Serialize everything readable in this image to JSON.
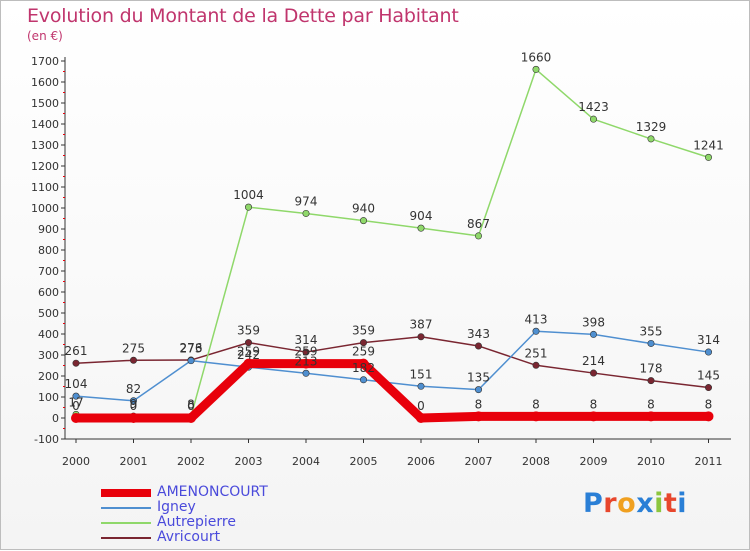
{
  "chart_data": {
    "type": "line",
    "title": "Evolution du Montant de la Dette par Habitant",
    "subtitle": "(en €)",
    "categories": [
      "2000",
      "2001",
      "2002",
      "2003",
      "2004",
      "2005",
      "2006",
      "2007",
      "2008",
      "2009",
      "2010",
      "2011"
    ],
    "ylim": [
      -100,
      1700
    ],
    "yticks": [
      -100,
      0,
      100,
      200,
      300,
      400,
      500,
      600,
      700,
      800,
      900,
      1000,
      1100,
      1200,
      1300,
      1400,
      1500,
      1600,
      1700
    ],
    "grid": false,
    "legend_position": "bottom-left",
    "series": [
      {
        "name": "AMENONCOURT",
        "color": "#e8000b",
        "width": 9,
        "values": [
          0,
          0,
          0,
          259,
          259,
          259,
          0,
          8,
          8,
          8,
          8,
          8
        ],
        "labels": [
          "0",
          "0",
          "0",
          "259",
          "259",
          "259",
          "0",
          "8",
          "8",
          "8",
          "8",
          "8"
        ]
      },
      {
        "name": "Igney",
        "color": "#4f8fd0",
        "width": 1.5,
        "values": [
          104,
          82,
          273,
          242,
          213,
          182,
          151,
          135,
          413,
          398,
          355,
          314
        ],
        "labels": [
          "104",
          "82",
          "273",
          "242",
          "213",
          "182",
          "151",
          "135",
          "413",
          "398",
          "355",
          "314"
        ]
      },
      {
        "name": "Autrepierre",
        "color": "#8fd86a",
        "width": 1.5,
        "values": [
          17,
          9,
          8,
          1004,
          974,
          940,
          904,
          867,
          1660,
          1423,
          1329,
          1241
        ],
        "labels": [
          "17",
          "9",
          "8",
          "1004",
          "974",
          "940",
          "904",
          "867",
          "1660",
          "1423",
          "1329",
          "1241"
        ]
      },
      {
        "name": "Avricourt",
        "color": "#7a2631",
        "width": 1.5,
        "values": [
          261,
          275,
          276,
          359,
          314,
          359,
          387,
          343,
          251,
          214,
          178,
          145
        ],
        "labels": [
          "261",
          "275",
          "276",
          "359",
          "314",
          "359",
          "387",
          "343",
          "251",
          "214",
          "178",
          "145"
        ]
      }
    ]
  },
  "logo": {
    "letters": [
      "P",
      "r",
      "o",
      "x",
      "i",
      "t",
      "i"
    ],
    "colors": [
      "#2a7fd6",
      "#e8462c",
      "#f0a020",
      "#2a7fd6",
      "#8cc63f",
      "#e8462c",
      "#2a7fd6"
    ]
  }
}
